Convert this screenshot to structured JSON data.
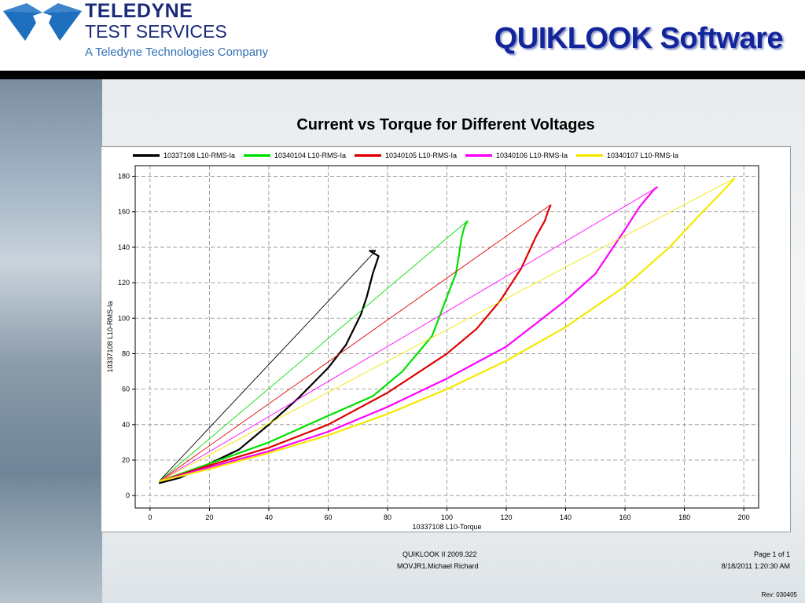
{
  "header": {
    "brand_name": "TELEDYNE",
    "brand_sub": "TEST SERVICES",
    "brand_tag": "A Teledyne Technologies Company",
    "app_title": "QUIKLOOK Software",
    "brand_color": "#1b2b7a",
    "title_color": "#13259a",
    "logo_icon": "teledyne-logo-icon"
  },
  "chart_data": {
    "type": "line",
    "title": "Current vs Torque for Different Voltages",
    "xlabel": "10337108 L10-Torque",
    "ylabel": "10337108 L10-RMS-Ia",
    "xlim": [
      -5,
      205
    ],
    "ylim": [
      -7,
      186
    ],
    "x_ticks": [
      0,
      20,
      40,
      60,
      80,
      100,
      120,
      140,
      160,
      180,
      200
    ],
    "y_ticks": [
      0,
      20,
      40,
      60,
      80,
      100,
      120,
      140,
      160,
      180
    ],
    "grid": true,
    "grid_style": "dashed",
    "legend_position": "top",
    "series": [
      {
        "name": "10337108 L10-RMS-Ia",
        "color": "#000000",
        "x": [
          3,
          10,
          20,
          30,
          40,
          50,
          60,
          66,
          71,
          73,
          75,
          76,
          77,
          75,
          74,
          76
        ],
        "y": [
          7,
          10,
          18,
          26,
          40,
          55,
          72,
          85,
          102,
          112,
          125,
          130,
          135,
          137,
          138,
          138
        ],
        "return_x": [
          76,
          3
        ],
        "return_y": [
          138,
          8
        ]
      },
      {
        "name": "10340104 L10-RMS-Ia",
        "color": "#00e000",
        "x": [
          3,
          20,
          40,
          60,
          75,
          85,
          95,
          100,
          103,
          104,
          105,
          106,
          107
        ],
        "y": [
          8,
          18,
          30,
          45,
          56,
          70,
          90,
          112,
          125,
          135,
          146,
          152,
          155
        ],
        "return_x": [
          107,
          3
        ],
        "return_y": [
          155,
          8
        ]
      },
      {
        "name": "10340105 L10-RMS-Ia",
        "color": "#e00000",
        "x": [
          3,
          20,
          40,
          60,
          80,
          100,
          110,
          118,
          125,
          130,
          133,
          134,
          135
        ],
        "y": [
          8,
          17,
          27,
          40,
          58,
          80,
          94,
          110,
          128,
          146,
          155,
          160,
          164
        ],
        "return_x": [
          135,
          3
        ],
        "return_y": [
          164,
          8
        ]
      },
      {
        "name": "10340106 L10-RMS-Ia",
        "color": "#ff00ff",
        "x": [
          3,
          20,
          40,
          60,
          80,
          100,
          120,
          140,
          150,
          160,
          165,
          170,
          171
        ],
        "y": [
          8,
          16,
          25,
          36,
          50,
          66,
          84,
          110,
          125,
          150,
          163,
          173,
          174
        ],
        "return_x": [
          171,
          3
        ],
        "return_y": [
          174,
          8
        ]
      },
      {
        "name": "10340107 L10-RMS-Ia",
        "color": "#f5e800",
        "x": [
          3,
          20,
          40,
          60,
          80,
          100,
          120,
          140,
          160,
          175,
          185,
          192,
          197
        ],
        "y": [
          8,
          15,
          24,
          34,
          46,
          60,
          76,
          95,
          118,
          140,
          158,
          170,
          179
        ],
        "return_x": [
          197,
          3
        ],
        "return_y": [
          179,
          8
        ]
      }
    ]
  },
  "footer": {
    "version": "QUIKLOOK II 2009.322",
    "user": "MOVJR1.Michael Richard",
    "page": "Page 1 of 1",
    "datetime": "8/18/2011 1:20:30 AM",
    "rev": "Rev: 030405"
  }
}
